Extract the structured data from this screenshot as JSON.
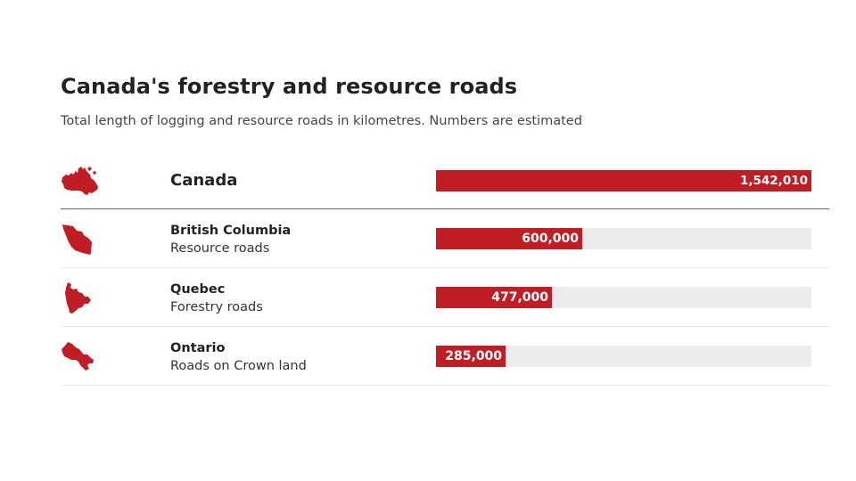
{
  "title": "Canada's forestry and resource roads",
  "subtitle": "Total length of logging and resource roads in kilometres. Numbers are estimated",
  "colors": {
    "bar": "#c01e24",
    "track": "#ececec",
    "map": "#c01e24"
  },
  "chart_data": {
    "type": "bar",
    "orientation": "horizontal",
    "title": "Canada's forestry and resource roads",
    "subtitle": "Total length of logging and resource roads in kilometres. Numbers are estimated",
    "xlim": [
      0,
      1542010
    ],
    "total": {
      "name": "Canada",
      "value": 1542010,
      "label": "1,542,010",
      "icon": "canada-map-icon"
    },
    "rows": [
      {
        "name": "British Columbia",
        "sub": "Resource roads",
        "value": 600000,
        "label": "600,000",
        "icon": "british-columbia-map-icon"
      },
      {
        "name": "Quebec",
        "sub": "Forestry roads",
        "value": 477000,
        "label": "477,000",
        "icon": "quebec-map-icon"
      },
      {
        "name": "Ontario",
        "sub": "Roads on Crown land",
        "value": 285000,
        "label": "285,000",
        "icon": "ontario-map-icon"
      }
    ]
  }
}
